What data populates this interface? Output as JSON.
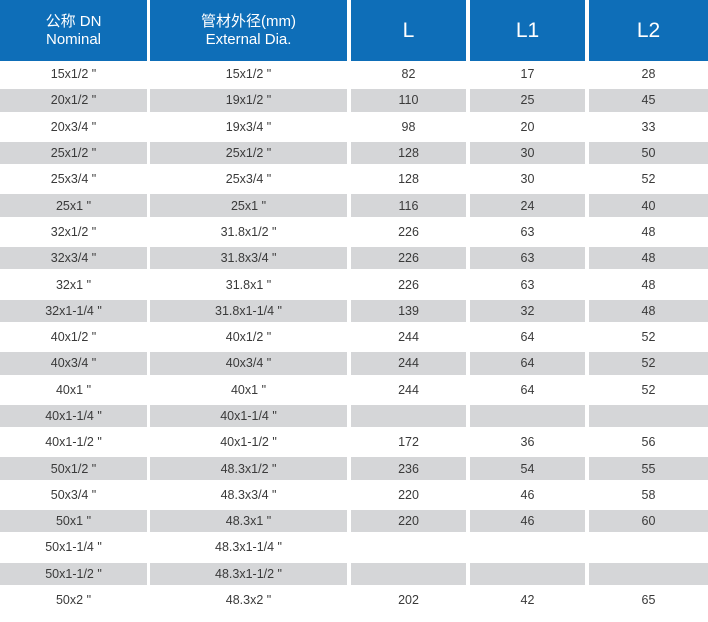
{
  "header": {
    "nominal_cn": "公称 DN",
    "nominal_en": "Nominal",
    "diameter_cn": "管材外径(mm)",
    "diameter_en": "External Dia.",
    "l": "L",
    "l1": "L1",
    "l2": "L2"
  },
  "rows": [
    {
      "dn": "15x1/2 \"",
      "od": "15x1/2 \"",
      "l": "82",
      "l1": "17",
      "l2": "28"
    },
    {
      "dn": "20x1/2 \"",
      "od": "19x1/2 \"",
      "l": "110",
      "l1": "25",
      "l2": "45"
    },
    {
      "dn": "20x3/4 \"",
      "od": "19x3/4 \"",
      "l": "98",
      "l1": "20",
      "l2": "33"
    },
    {
      "dn": "25x1/2 \"",
      "od": "25x1/2 \"",
      "l": "128",
      "l1": "30",
      "l2": "50"
    },
    {
      "dn": "25x3/4 \"",
      "od": "25x3/4 \"",
      "l": "128",
      "l1": "30",
      "l2": "52"
    },
    {
      "dn": "25x1 \"",
      "od": "25x1 \"",
      "l": "116",
      "l1": "24",
      "l2": "40"
    },
    {
      "dn": "32x1/2 \"",
      "od": "31.8x1/2 \"",
      "l": "226",
      "l1": "63",
      "l2": "48"
    },
    {
      "dn": "32x3/4 \"",
      "od": "31.8x3/4 \"",
      "l": "226",
      "l1": "63",
      "l2": "48"
    },
    {
      "dn": "32x1 \"",
      "od": "31.8x1 \"",
      "l": "226",
      "l1": "63",
      "l2": "48"
    },
    {
      "dn": "32x1-1/4 \"",
      "od": "31.8x1-1/4 \"",
      "l": "139",
      "l1": "32",
      "l2": "48"
    },
    {
      "dn": "40x1/2 \"",
      "od": "40x1/2 \"",
      "l": "244",
      "l1": "64",
      "l2": "52"
    },
    {
      "dn": "40x3/4 \"",
      "od": "40x3/4 \"",
      "l": "244",
      "l1": "64",
      "l2": "52"
    },
    {
      "dn": "40x1 \"",
      "od": "40x1 \"",
      "l": "244",
      "l1": "64",
      "l2": "52"
    },
    {
      "dn": "40x1-1/4 \"",
      "od": "40x1-1/4 \"",
      "l": "",
      "l1": "",
      "l2": ""
    },
    {
      "dn": "40x1-1/2 \"",
      "od": "40x1-1/2 \"",
      "l": "172",
      "l1": "36",
      "l2": "56"
    },
    {
      "dn": "50x1/2 \"",
      "od": "48.3x1/2 \"",
      "l": "236",
      "l1": "54",
      "l2": "55"
    },
    {
      "dn": "50x3/4 \"",
      "od": "48.3x3/4 \"",
      "l": "220",
      "l1": "46",
      "l2": "58"
    },
    {
      "dn": "50x1 \"",
      "od": "48.3x1 \"",
      "l": "220",
      "l1": "46",
      "l2": "60"
    },
    {
      "dn": "50x1-1/4 \"",
      "od": "48.3x1-1/4 \"",
      "l": "",
      "l1": "",
      "l2": ""
    },
    {
      "dn": "50x1-1/2 \"",
      "od": "48.3x1-1/2 \"",
      "l": "",
      "l1": "",
      "l2": ""
    },
    {
      "dn": "50x2 \"",
      "od": "48.3x2 \"",
      "l": "202",
      "l1": "42",
      "l2": "65"
    }
  ],
  "colors": {
    "header_bg": "#0e6eb8",
    "header_text": "#ffffff",
    "shaded_row": "#d5d6d8",
    "body_text": "#3a3a3a"
  }
}
